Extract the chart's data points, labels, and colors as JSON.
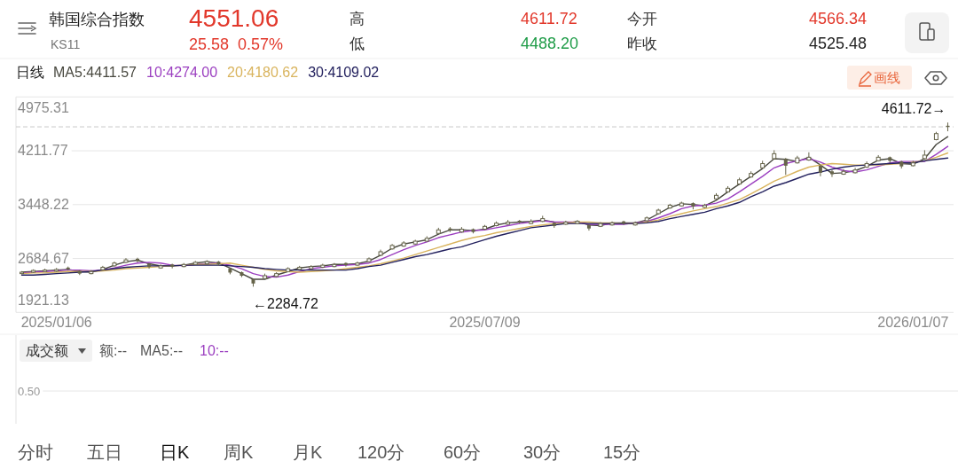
{
  "chart_data": [
    {
      "type": "candlestick",
      "title": "韩国综合指数",
      "subtitle": "KS11",
      "legend_title": "日线",
      "legend": "top left",
      "grid": "y",
      "categories": [
        null,
        null,
        null,
        "2025/01/06",
        null,
        null,
        null,
        null,
        null,
        null,
        null,
        null,
        null,
        null,
        null,
        null,
        null,
        null,
        null,
        null,
        null,
        null,
        null,
        null,
        null,
        null,
        null,
        null,
        null,
        null,
        null,
        null,
        null,
        null,
        null,
        null,
        null,
        null,
        null,
        null,
        "2025/07/09",
        null,
        null,
        null,
        null,
        null,
        null,
        null,
        null,
        null,
        null,
        null,
        null,
        null,
        null,
        null,
        null,
        null,
        null,
        null,
        null,
        null,
        null,
        null,
        null,
        null,
        null,
        null,
        null,
        null,
        null,
        null,
        null,
        null,
        null,
        null,
        null,
        "2026/01/07",
        null,
        null,
        null
      ],
      "ylim": [
        1921.13,
        4975.31
      ],
      "yticks": [
        1921.13,
        2684.67,
        3448.22,
        4211.77,
        4975.31
      ],
      "color": "#66644a",
      "ohlc": [
        [
          2470,
          2505,
          2460,
          2490
        ],
        [
          2490,
          2530,
          2480,
          2515
        ],
        [
          2500,
          2540,
          2490,
          2520
        ],
        [
          2505,
          2550,
          2495,
          2528
        ],
        [
          2555,
          2570,
          2515,
          2532
        ],
        [
          2510,
          2520,
          2450,
          2470
        ],
        [
          2470,
          2520,
          2460,
          2500
        ],
        [
          2525,
          2580,
          2515,
          2560
        ],
        [
          2580,
          2640,
          2570,
          2620
        ],
        [
          2630,
          2690,
          2620,
          2665
        ],
        [
          2680,
          2695,
          2630,
          2650
        ],
        [
          2610,
          2620,
          2540,
          2565
        ],
        [
          2550,
          2600,
          2540,
          2580
        ],
        [
          2600,
          2610,
          2545,
          2570
        ],
        [
          2570,
          2620,
          2560,
          2600
        ],
        [
          2600,
          2650,
          2590,
          2630
        ],
        [
          2610,
          2660,
          2600,
          2640
        ],
        [
          2640,
          2650,
          2580,
          2600
        ],
        [
          2540,
          2550,
          2460,
          2485
        ],
        [
          2490,
          2500,
          2420,
          2440
        ],
        [
          2390,
          2400,
          2284.72,
          2330
        ],
        [
          2400,
          2470,
          2390,
          2440
        ],
        [
          2430,
          2490,
          2420,
          2470
        ],
        [
          2500,
          2560,
          2490,
          2540
        ],
        [
          2530,
          2580,
          2520,
          2560
        ],
        [
          2540,
          2590,
          2530,
          2570
        ],
        [
          2560,
          2610,
          2550,
          2590
        ],
        [
          2570,
          2620,
          2560,
          2600
        ],
        [
          2620,
          2630,
          2570,
          2590
        ],
        [
          2590,
          2640,
          2580,
          2620
        ],
        [
          2640,
          2700,
          2630,
          2680
        ],
        [
          2730,
          2810,
          2720,
          2780
        ],
        [
          2820,
          2890,
          2810,
          2870
        ],
        [
          2860,
          2930,
          2850,
          2905
        ],
        [
          2890,
          2950,
          2880,
          2930
        ],
        [
          2930,
          3000,
          2920,
          2970
        ],
        [
          3040,
          3120,
          3030,
          3090
        ],
        [
          3110,
          3130,
          3060,
          3080
        ],
        [
          3060,
          3130,
          3050,
          3100
        ],
        [
          3100,
          3110,
          3040,
          3060
        ],
        [
          3100,
          3160,
          3090,
          3140
        ],
        [
          3150,
          3210,
          3140,
          3185
        ],
        [
          3170,
          3230,
          3160,
          3200
        ],
        [
          3220,
          3230,
          3180,
          3200
        ],
        [
          3180,
          3240,
          3170,
          3210
        ],
        [
          3210,
          3290,
          3200,
          3250
        ],
        [
          3190,
          3200,
          3120,
          3145
        ],
        [
          3170,
          3220,
          3160,
          3200
        ],
        [
          3180,
          3230,
          3170,
          3210
        ],
        [
          3160,
          3170,
          3080,
          3110
        ],
        [
          3140,
          3200,
          3130,
          3180
        ],
        [
          3160,
          3210,
          3150,
          3190
        ],
        [
          3210,
          3220,
          3160,
          3185
        ],
        [
          3160,
          3210,
          3150,
          3190
        ],
        [
          3220,
          3280,
          3210,
          3260
        ],
        [
          3320,
          3390,
          3310,
          3370
        ],
        [
          3400,
          3460,
          3390,
          3440
        ],
        [
          3430,
          3490,
          3420,
          3470
        ],
        [
          3470,
          3480,
          3380,
          3420
        ],
        [
          3410,
          3460,
          3400,
          3440
        ],
        [
          3530,
          3610,
          3520,
          3580
        ],
        [
          3630,
          3710,
          3620,
          3680
        ],
        [
          3740,
          3830,
          3730,
          3800
        ],
        [
          3840,
          3920,
          3830,
          3890
        ],
        [
          3970,
          4070,
          3960,
          4030
        ],
        [
          4100,
          4220,
          4090,
          4170
        ],
        [
          4100,
          4110,
          3870,
          4000
        ],
        [
          4040,
          4140,
          4030,
          4110
        ],
        [
          4080,
          4190,
          4070,
          4120
        ],
        [
          4000,
          4010,
          3850,
          3900
        ],
        [
          3920,
          3940,
          3840,
          3880
        ],
        [
          3880,
          3950,
          3870,
          3920
        ],
        [
          3900,
          3970,
          3890,
          3940
        ],
        [
          3980,
          4060,
          3970,
          4030
        ],
        [
          4070,
          4150,
          4060,
          4120
        ],
        [
          4120,
          4130,
          4040,
          4070
        ],
        [
          4060,
          4070,
          3960,
          3990
        ],
        [
          4000,
          4070,
          3990,
          4040
        ],
        [
          4100,
          4220,
          4090,
          4150
        ],
        [
          4370,
          4480,
          4360,
          4455
        ],
        [
          4566.34,
          4611.72,
          4488.2,
          4551.06
        ]
      ],
      "series": [
        {
          "name": "MA5:4411.57",
          "type": "line",
          "color": "#48483f",
          "values": [
            2490,
            2500,
            2510,
            2520,
            2530,
            2500,
            2490,
            2530,
            2590,
            2640,
            2660,
            2610,
            2580,
            2580,
            2590,
            2620,
            2640,
            2620,
            2550,
            2470,
            2390,
            2390,
            2450,
            2500,
            2550,
            2570,
            2580,
            2600,
            2600,
            2610,
            2650,
            2730,
            2830,
            2890,
            2920,
            2950,
            3030,
            3090,
            3090,
            3080,
            3100,
            3160,
            3190,
            3200,
            3210,
            3230,
            3200,
            3180,
            3210,
            3160,
            3150,
            3190,
            3190,
            3190,
            3230,
            3320,
            3410,
            3460,
            3450,
            3430,
            3510,
            3630,
            3740,
            3850,
            3960,
            4100,
            4090,
            4060,
            4120,
            4010,
            3890,
            3900,
            3930,
            3990,
            4080,
            4100,
            4030,
            4020,
            4100,
            4300,
            4411.57
          ]
        },
        {
          "name": "10:4274.00",
          "type": "line",
          "color": "#9b3fc0",
          "values": [
            2480,
            2490,
            2500,
            2510,
            2520,
            2520,
            2510,
            2520,
            2550,
            2590,
            2620,
            2630,
            2620,
            2590,
            2580,
            2600,
            2610,
            2620,
            2590,
            2540,
            2470,
            2430,
            2420,
            2450,
            2500,
            2540,
            2560,
            2580,
            2590,
            2600,
            2620,
            2670,
            2740,
            2810,
            2870,
            2920,
            2980,
            3020,
            3060,
            3080,
            3090,
            3120,
            3150,
            3180,
            3200,
            3220,
            3200,
            3200,
            3200,
            3170,
            3170,
            3170,
            3170,
            3190,
            3210,
            3260,
            3320,
            3390,
            3430,
            3440,
            3470,
            3530,
            3630,
            3740,
            3850,
            3970,
            4030,
            4070,
            4100,
            4050,
            3980,
            3930,
            3910,
            3940,
            3990,
            4040,
            4060,
            4060,
            4060,
            4160,
            4274.0
          ]
        },
        {
          "name": "20:4180.62",
          "type": "line",
          "color": "#d9b45e",
          "values": [
            2470,
            2480,
            2480,
            2490,
            2500,
            2500,
            2500,
            2510,
            2520,
            2540,
            2550,
            2560,
            2570,
            2580,
            2590,
            2600,
            2600,
            2610,
            2620,
            2590,
            2560,
            2530,
            2510,
            2500,
            2490,
            2500,
            2510,
            2520,
            2540,
            2560,
            2580,
            2610,
            2650,
            2690,
            2740,
            2790,
            2840,
            2890,
            2940,
            2980,
            3010,
            3050,
            3080,
            3110,
            3140,
            3160,
            3180,
            3190,
            3200,
            3200,
            3190,
            3190,
            3180,
            3180,
            3200,
            3230,
            3280,
            3320,
            3360,
            3390,
            3420,
            3470,
            3520,
            3600,
            3690,
            3780,
            3850,
            3920,
            3980,
            4010,
            4030,
            4020,
            4010,
            4010,
            4010,
            4020,
            4030,
            4050,
            4070,
            4120,
            4180.62
          ]
        },
        {
          "name": "30:4109.02",
          "type": "line",
          "color": "#23215e",
          "values": [
            2450,
            2450,
            2460,
            2470,
            2480,
            2490,
            2500,
            2520,
            2540,
            2560,
            2570,
            2580,
            2580,
            2580,
            2590,
            2590,
            2590,
            2590,
            2580,
            2570,
            2560,
            2540,
            2530,
            2520,
            2520,
            2520,
            2520,
            2520,
            2520,
            2540,
            2570,
            2590,
            2630,
            2670,
            2710,
            2740,
            2780,
            2820,
            2850,
            2900,
            2950,
            3000,
            3040,
            3080,
            3120,
            3140,
            3160,
            3180,
            3180,
            3180,
            3180,
            3180,
            3180,
            3180,
            3190,
            3210,
            3250,
            3280,
            3310,
            3340,
            3390,
            3430,
            3480,
            3560,
            3630,
            3710,
            3760,
            3820,
            3880,
            3910,
            3950,
            3980,
            4000,
            4010,
            4020,
            4030,
            4040,
            4040,
            4070,
            4090,
            4109.02
          ]
        }
      ],
      "ref_lines": [
        {
          "axis": "y",
          "value": 4551.06,
          "line_style": "dashed",
          "color": "#c8c8c8"
        }
      ],
      "annotations": [
        "4551.06",
        "25.58",
        "0.57%",
        "高",
        "4611.72",
        "低",
        "4488.20",
        "今开",
        "4566.34",
        "昨收",
        "4525.48",
        "画线",
        {
          "text": "4611.72→",
          "y": 4611.72
        },
        "←2284.72"
      ]
    },
    {
      "type": "other",
      "title": "成交额",
      "annotations": [
        "额:--",
        "MA5:--",
        "10:--",
        "0.50"
      ]
    },
    {
      "type": "other",
      "annotations": [
        "分时",
        "五日",
        "日K",
        "周K",
        "月K",
        "120分",
        "60分",
        "30分",
        "15分"
      ]
    }
  ]
}
